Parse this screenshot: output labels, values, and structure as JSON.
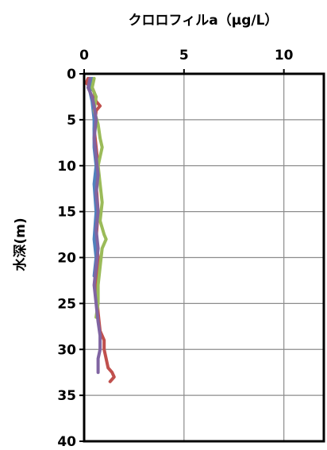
{
  "chart_data": {
    "type": "line",
    "title": "クロロフィルa（μg/L）",
    "xlabel": "クロロフィルa（μg/L）",
    "ylabel": "水深(m)",
    "x_axis_position": "top",
    "y_axis_inverted": true,
    "xlim": [
      0,
      12
    ],
    "ylim": [
      0,
      40
    ],
    "x_ticks": [
      "0",
      "5",
      "10"
    ],
    "y_ticks": [
      "0",
      "5",
      "10",
      "15",
      "20",
      "25",
      "30",
      "35",
      "40"
    ],
    "grid": true,
    "legend": "none",
    "series": [
      {
        "color": "#c0504d",
        "points": [
          [
            0.2,
            0.5
          ],
          [
            0.1,
            1.0
          ],
          [
            0.4,
            1.5
          ],
          [
            0.5,
            2.0
          ],
          [
            0.6,
            3.0
          ],
          [
            0.8,
            3.5
          ],
          [
            0.6,
            4.0
          ],
          [
            0.5,
            6.0
          ],
          [
            0.6,
            8.0
          ],
          [
            0.7,
            10.0
          ],
          [
            0.6,
            12.0
          ],
          [
            0.7,
            15.0
          ],
          [
            0.6,
            18.0
          ],
          [
            0.7,
            20.0
          ],
          [
            0.6,
            23.0
          ],
          [
            0.7,
            26.0
          ],
          [
            0.8,
            28.0
          ],
          [
            0.9,
            28.5
          ],
          [
            1.0,
            29.0
          ],
          [
            1.0,
            30.0
          ],
          [
            1.1,
            31.0
          ],
          [
            1.2,
            32.0
          ],
          [
            1.4,
            32.5
          ],
          [
            1.5,
            33.0
          ],
          [
            1.3,
            33.5
          ]
        ]
      },
      {
        "color": "#4f81bd",
        "points": [
          [
            0.4,
            0.5
          ],
          [
            0.3,
            1.0
          ],
          [
            0.3,
            2.0
          ],
          [
            0.4,
            3.0
          ],
          [
            0.5,
            5.0
          ],
          [
            0.5,
            8.0
          ],
          [
            0.6,
            10.0
          ],
          [
            0.5,
            12.0
          ],
          [
            0.6,
            15.0
          ],
          [
            0.5,
            18.0
          ],
          [
            0.6,
            20.0
          ],
          [
            0.5,
            22.0
          ]
        ]
      },
      {
        "color": "#9bbb59",
        "points": [
          [
            0.5,
            0.5
          ],
          [
            0.4,
            1.5
          ],
          [
            0.6,
            2.5
          ],
          [
            0.5,
            4.0
          ],
          [
            0.7,
            5.5
          ],
          [
            0.8,
            7.0
          ],
          [
            0.9,
            8.0
          ],
          [
            0.7,
            10.0
          ],
          [
            0.8,
            12.0
          ],
          [
            0.9,
            14.0
          ],
          [
            0.8,
            16.0
          ],
          [
            1.0,
            17.5
          ],
          [
            1.1,
            18.0
          ],
          [
            0.9,
            19.0
          ],
          [
            0.8,
            21.0
          ],
          [
            0.7,
            23.0
          ],
          [
            0.7,
            25.0
          ],
          [
            0.6,
            26.5
          ]
        ]
      },
      {
        "color": "#8064a2",
        "points": [
          [
            0.3,
            0.5
          ],
          [
            0.2,
            1.5
          ],
          [
            0.4,
            2.5
          ],
          [
            0.5,
            3.5
          ],
          [
            0.6,
            5.0
          ],
          [
            0.5,
            7.0
          ],
          [
            0.6,
            9.0
          ],
          [
            0.7,
            11.0
          ],
          [
            0.6,
            13.0
          ],
          [
            0.7,
            15.0
          ],
          [
            0.6,
            17.0
          ],
          [
            0.7,
            19.0
          ],
          [
            0.6,
            21.0
          ],
          [
            0.5,
            23.0
          ],
          [
            0.6,
            25.0
          ],
          [
            0.7,
            27.0
          ],
          [
            0.8,
            28.5
          ],
          [
            0.8,
            30.0
          ],
          [
            0.7,
            31.0
          ],
          [
            0.7,
            32.5
          ]
        ]
      }
    ]
  }
}
